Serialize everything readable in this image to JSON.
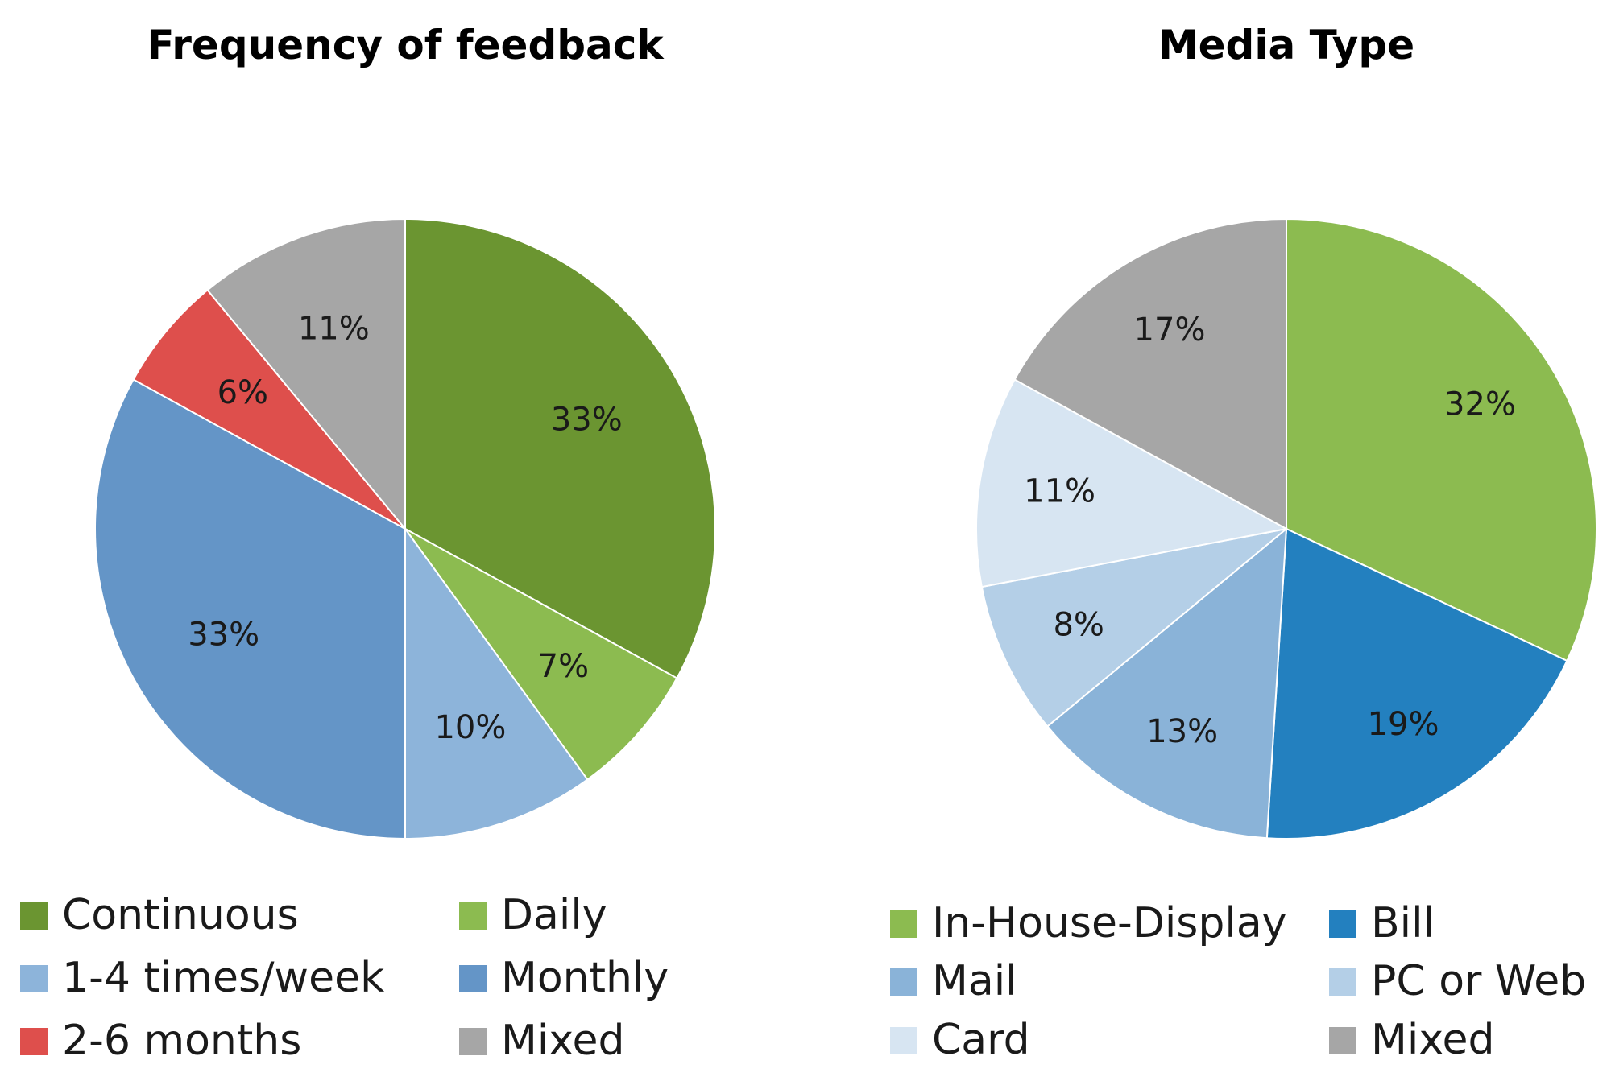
{
  "chart_data": [
    {
      "type": "pie",
      "title": "Frequency of feedback",
      "start": "top, clockwise",
      "slices": [
        {
          "label": "Continuous",
          "value": 33,
          "display": "33%",
          "color": "#6b9531"
        },
        {
          "label": "Daily",
          "value": 7,
          "display": "7%",
          "color": "#8cbb50"
        },
        {
          "label": "1-4 times/week",
          "value": 10,
          "display": "10%",
          "color": "#8db4da"
        },
        {
          "label": "Monthly",
          "value": 33,
          "display": "33%",
          "color": "#6495c7"
        },
        {
          "label": "2-6 months",
          "value": 6,
          "display": "6%",
          "color": "#de4f4c"
        },
        {
          "label": "Mixed",
          "value": 11,
          "display": "11%",
          "color": "#a6a6a6"
        }
      ],
      "legend": [
        "Continuous",
        "Daily",
        "1-4 times/week",
        "Monthly",
        "2-6 months",
        "Mixed"
      ]
    },
    {
      "type": "pie",
      "title": "Media Type",
      "start": "top, clockwise",
      "slices": [
        {
          "label": "In-House-Display",
          "value": 32,
          "display": "32%",
          "color": "#8cbb50"
        },
        {
          "label": "Bill",
          "value": 19,
          "display": "19%",
          "color": "#2380bf"
        },
        {
          "label": "Mail",
          "value": 13,
          "display": "13%",
          "color": "#8ab3d8"
        },
        {
          "label": "PC or Web",
          "value": 8,
          "display": "8%",
          "color": "#b4cfe7"
        },
        {
          "label": "Card",
          "value": 11,
          "display": "11%",
          "color": "#d7e5f2"
        },
        {
          "label": "Mixed",
          "value": 17,
          "display": "17%",
          "color": "#a6a6a6"
        }
      ],
      "legend": [
        "In-House-Display",
        "Bill",
        "Mail",
        "PC or Web",
        "Card",
        "Mixed"
      ]
    }
  ]
}
